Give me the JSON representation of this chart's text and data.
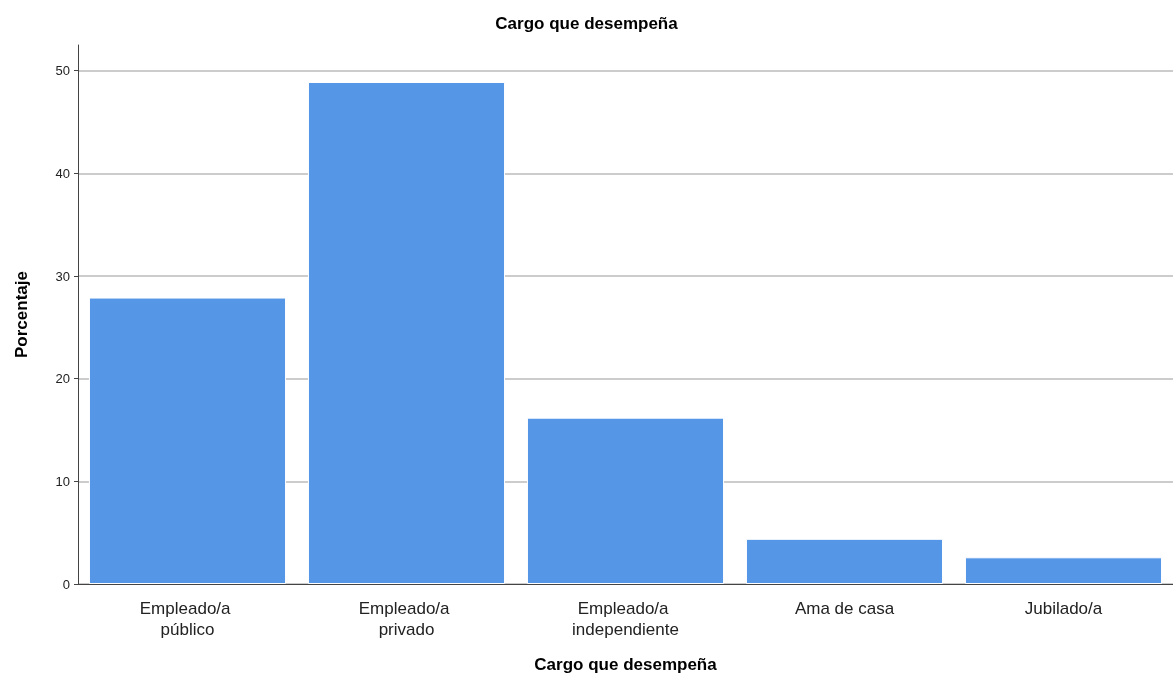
{
  "chart_data": {
    "type": "bar",
    "title": "Cargo que desempeña",
    "xlabel": "Cargo que desempeña",
    "ylabel": "Porcentaje",
    "categories": [
      "Empleado/a público",
      "Empleado/a privado",
      "Empleado/a independiente",
      "Ama de casa",
      "Jubilado/a"
    ],
    "values": [
      27.9,
      48.9,
      16.2,
      4.4,
      2.6
    ],
    "color": "#5596e6",
    "ylim": [
      0,
      52.5
    ],
    "yticks": [
      0,
      10,
      20,
      30,
      40,
      50
    ],
    "grid": "y"
  }
}
